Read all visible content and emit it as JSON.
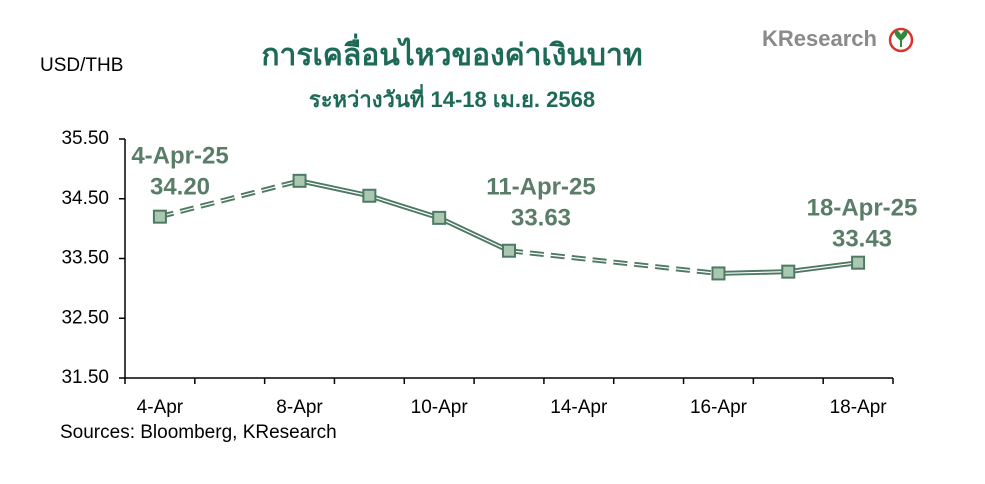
{
  "header": {
    "title": "การเคลื่อนไหวของค่าเงินบาท",
    "subtitle": "ระหว่างวันที่ 14-18 เม.ย. 2568",
    "logo": "KResearch"
  },
  "footer": {
    "source": "Sources: Bloomberg, KResearch"
  },
  "chart_data": {
    "type": "line",
    "y_label": "USD/THB",
    "categories": [
      "4-Apr",
      null,
      "8-Apr",
      null,
      "10-Apr",
      null,
      "14-Apr",
      null,
      "16-Apr",
      null,
      "18-Apr"
    ],
    "series": [
      {
        "name": "USD/THB",
        "color": "#4e7a63",
        "marker_fill": "#a9c7b1",
        "values": [
          34.2,
          null,
          34.8,
          34.55,
          34.18,
          33.63,
          null,
          null,
          33.25,
          33.28,
          33.43
        ]
      }
    ],
    "ylim": [
      31.5,
      35.5
    ],
    "yticks": [
      {
        "value": 31.5,
        "label": "31.50"
      },
      {
        "value": 32.5,
        "label": "32.50"
      },
      {
        "value": 33.5,
        "label": "33.50"
      },
      {
        "value": 34.5,
        "label": "34.50"
      },
      {
        "value": 35.5,
        "label": "35.50"
      }
    ],
    "annotations": [
      {
        "label": "4-Apr-25",
        "value": "34.20"
      },
      {
        "label": "11-Apr-25",
        "value": "33.63"
      },
      {
        "label": "18-Apr-25",
        "value": "33.43"
      }
    ]
  }
}
